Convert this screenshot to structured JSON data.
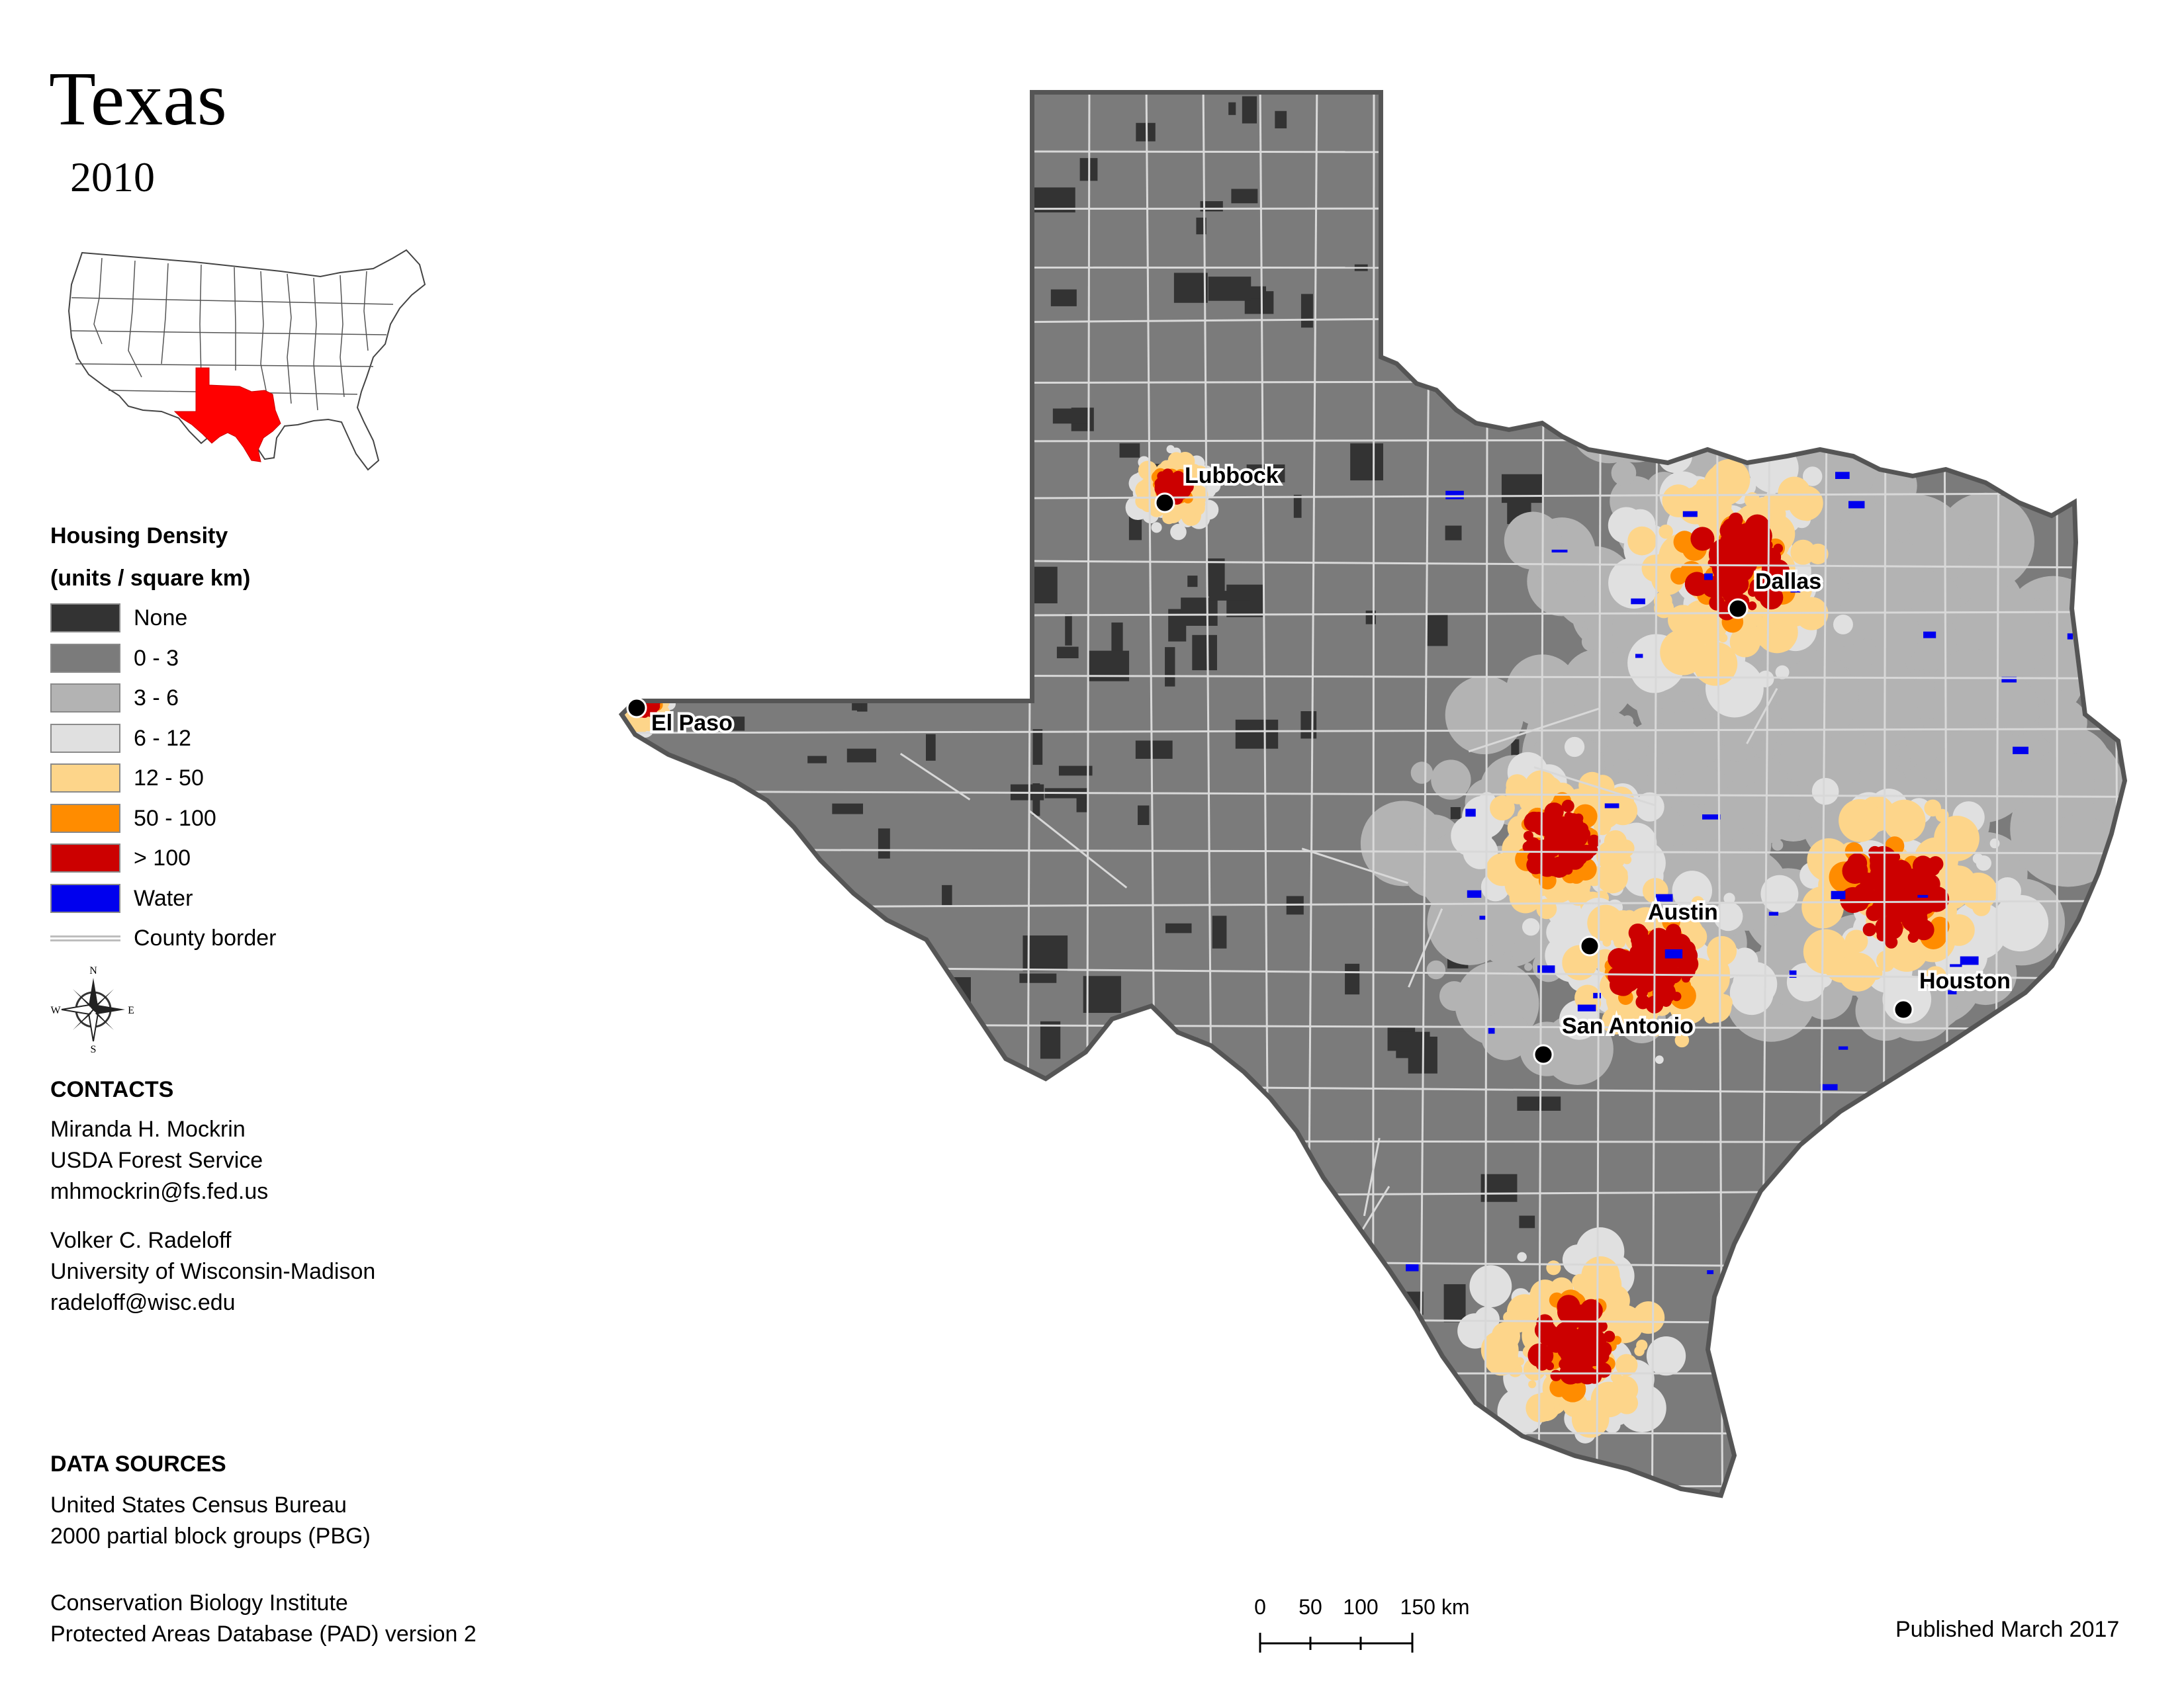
{
  "title": "Texas",
  "year": "2010",
  "legend": {
    "title_line1": "Housing Density",
    "title_line2": "(units / square km)",
    "items": [
      {
        "label": "None",
        "color": "#333333"
      },
      {
        "label": "0 - 3",
        "color": "#7b7b7b"
      },
      {
        "label": "3 - 6",
        "color": "#b3b3b3"
      },
      {
        "label": "6 - 12",
        "color": "#e0e0e0"
      },
      {
        "label": "12 - 50",
        "color": "#fdd58a"
      },
      {
        "label": "50 - 100",
        "color": "#ff8c00"
      },
      {
        "label": "> 100",
        "color": "#cc0000"
      },
      {
        "label": "Water",
        "color": "#0000ee"
      }
    ],
    "border_label": "County border"
  },
  "compass": {
    "n": "N",
    "s": "S",
    "e": "E",
    "w": "W"
  },
  "contacts": {
    "heading": "CONTACTS",
    "people": [
      {
        "name": "Miranda H. Mockrin",
        "org": "USDA Forest Service",
        "email": "mhmockrin@fs.fed.us"
      },
      {
        "name": "Volker C. Radeloff",
        "org": "University of Wisconsin-Madison",
        "email": "radeloff@wisc.edu"
      }
    ]
  },
  "data_sources": {
    "heading": "DATA SOURCES",
    "source1_line1": "United States Census Bureau",
    "source1_line2": "2000 partial block groups (PBG)",
    "source2_line1": "Conservation Biology Institute",
    "source2_line2": "Protected Areas Database (PAD) version 2"
  },
  "scale": {
    "ticks": [
      "0",
      "50",
      "100",
      "150 km"
    ]
  },
  "published": "Published March 2017",
  "inset": {
    "highlight_color": "#ff0000"
  },
  "cities": [
    {
      "name": "Lubbock"
    },
    {
      "name": "El Paso"
    },
    {
      "name": "Dallas"
    },
    {
      "name": "Austin"
    },
    {
      "name": "Houston"
    },
    {
      "name": "San Antonio"
    }
  ]
}
